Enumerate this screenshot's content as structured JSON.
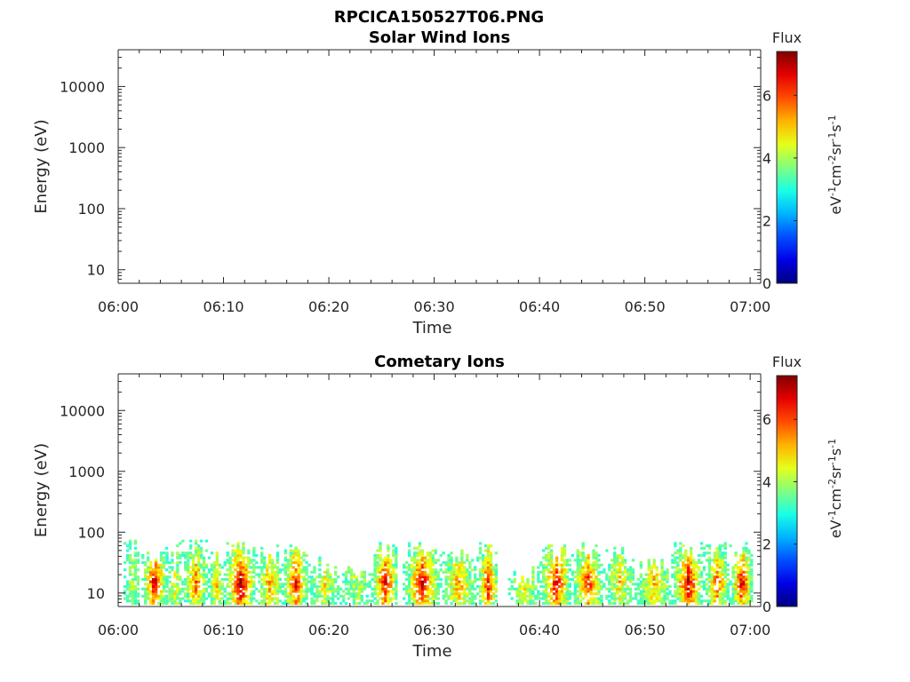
{
  "figure_title": "RPCICA150527T06.PNG",
  "colors": {
    "axis": "#262626",
    "background": "#ffffff"
  },
  "chart_data": [
    {
      "type": "heatmap",
      "title": "Solar Wind Ions",
      "xlabel": "Time",
      "ylabel": "Energy (eV)",
      "x_tick_labels": [
        "06:00",
        "06:10",
        "06:20",
        "06:30",
        "06:40",
        "06:50",
        "07:00"
      ],
      "y_tick_labels": [
        "10",
        "100",
        "1000",
        "10000"
      ],
      "y_scale": "log",
      "ylim": [
        6,
        40000
      ],
      "xlim_minutes": [
        0,
        61
      ],
      "colorbar": {
        "title": "Flux",
        "label": "eV-1cm-2sr-1s-1",
        "range": [
          0,
          7.4
        ],
        "ticks": [
          "0",
          "2",
          "4",
          "6"
        ],
        "colormap": "jet"
      },
      "blobs": []
    },
    {
      "type": "heatmap",
      "title": "Cometary Ions",
      "xlabel": "Time",
      "ylabel": "Energy (eV)",
      "x_tick_labels": [
        "06:00",
        "06:10",
        "06:20",
        "06:30",
        "06:40",
        "06:50",
        "07:00"
      ],
      "y_tick_labels": [
        "10",
        "100",
        "1000",
        "10000"
      ],
      "y_scale": "log",
      "ylim": [
        6,
        40000
      ],
      "xlim_minutes": [
        0,
        61
      ],
      "colorbar": {
        "title": "Flux",
        "label": "eV-1cm-2sr-1s-1",
        "range": [
          0,
          7.4
        ],
        "ticks": [
          "0",
          "2",
          "4",
          "6"
        ],
        "colormap": "jet"
      },
      "blobs": [
        {
          "t0": 0.5,
          "t1": 2.0,
          "peak": 4.2,
          "emax": 80
        },
        {
          "t0": 2.2,
          "t1": 4.5,
          "peak": 7.0,
          "emax": 60
        },
        {
          "t0": 4.5,
          "t1": 6.0,
          "peak": 4.8,
          "emax": 70
        },
        {
          "t0": 6.0,
          "t1": 8.5,
          "peak": 5.8,
          "emax": 80
        },
        {
          "t0": 8.5,
          "t1": 10.0,
          "peak": 5.2,
          "emax": 60
        },
        {
          "t0": 10.0,
          "t1": 13.0,
          "peak": 7.2,
          "emax": 80
        },
        {
          "t0": 13.0,
          "t1": 15.5,
          "peak": 5.5,
          "emax": 60
        },
        {
          "t0": 15.5,
          "t1": 18.0,
          "peak": 6.5,
          "emax": 70
        },
        {
          "t0": 18.0,
          "t1": 21.0,
          "peak": 4.8,
          "emax": 40
        },
        {
          "t0": 21.0,
          "t1": 24.0,
          "peak": 4.2,
          "emax": 30
        },
        {
          "t0": 24.0,
          "t1": 26.5,
          "peak": 6.8,
          "emax": 70
        },
        {
          "t0": 27.0,
          "t1": 30.5,
          "peak": 6.9,
          "emax": 80
        },
        {
          "t0": 30.5,
          "t1": 34.0,
          "peak": 5.5,
          "emax": 50
        },
        {
          "t0": 34.0,
          "t1": 36.0,
          "peak": 6.5,
          "emax": 70
        },
        {
          "t0": 37.0,
          "t1": 40.0,
          "peak": 4.8,
          "emax": 30
        },
        {
          "t0": 40.0,
          "t1": 43.0,
          "peak": 6.8,
          "emax": 70
        },
        {
          "t0": 43.0,
          "t1": 46.0,
          "peak": 6.5,
          "emax": 70
        },
        {
          "t0": 46.0,
          "t1": 49.0,
          "peak": 5.0,
          "emax": 60
        },
        {
          "t0": 49.0,
          "t1": 52.5,
          "peak": 5.2,
          "emax": 40
        },
        {
          "t0": 52.5,
          "t1": 55.5,
          "peak": 6.9,
          "emax": 80
        },
        {
          "t0": 55.5,
          "t1": 58.0,
          "peak": 6.0,
          "emax": 70
        },
        {
          "t0": 58.0,
          "t1": 60.2,
          "peak": 6.8,
          "emax": 70
        }
      ]
    }
  ]
}
